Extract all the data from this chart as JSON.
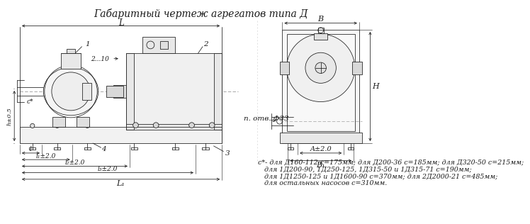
{
  "title": "Габаритный чертеж агрегатов типа Д",
  "title_fontsize": 10,
  "bg_color": "#ffffff",
  "line_color": "#1a1a1a",
  "note_lines": [
    "с*- для Д160-112 с=175мм; для Д200-36 с=185мм; для Д320-50 с=215мм;",
    "   для 1Д200-90, 1Д250-125, 1Д315-50 и 1Д315-71 с=190мм;",
    "   для 1Д1250-125 и 1Д1600-90 с=370мм; для 2Д2000-21 с=485мм;",
    "   для остальных насосов с=310мм."
  ],
  "note_fontsize": 6.8,
  "fs": 7.5
}
